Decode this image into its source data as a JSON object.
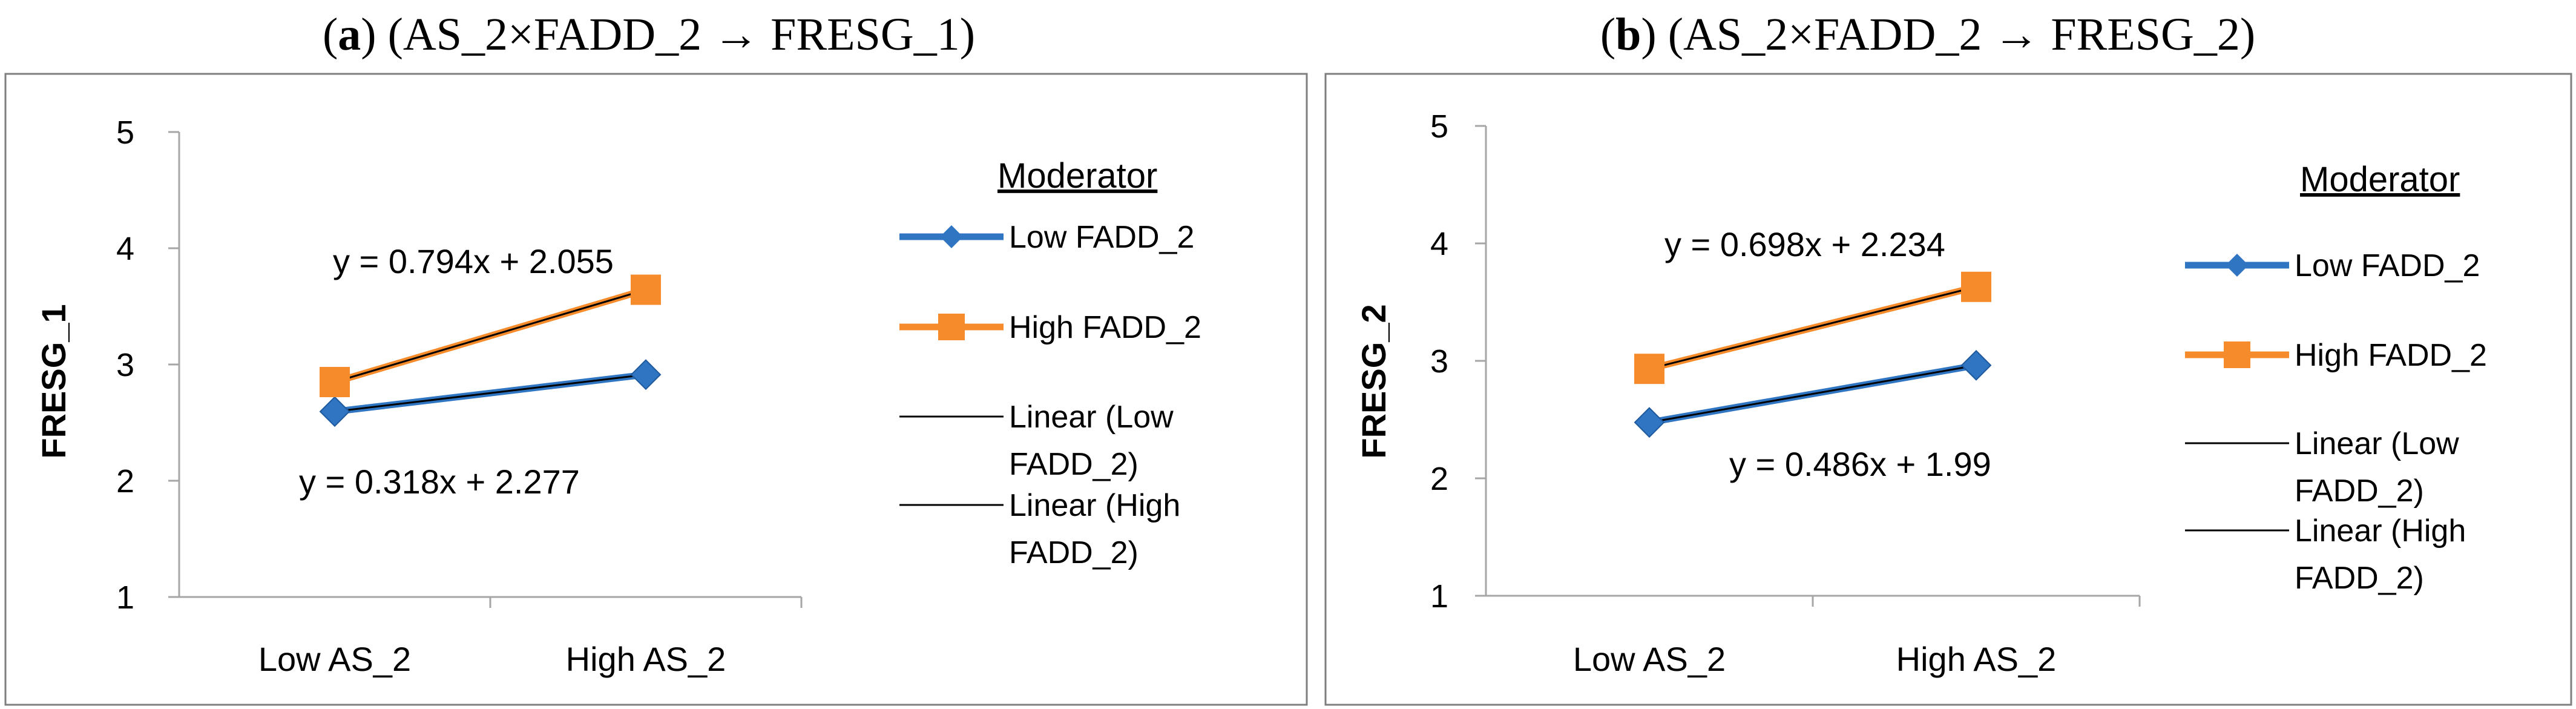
{
  "colors": {
    "low": "#2f75c2",
    "high": "#f58b2b",
    "trend": "#000000",
    "panel_border": "#7f7f7f",
    "axis": "#a6a6a6",
    "text": "#000000"
  },
  "chart_data": [
    {
      "type": "line",
      "title_prefix": "a",
      "title_body": " (AS_2×FADD_2 → FRESG_1)",
      "xlabel": "",
      "ylabel": "FRESG_1",
      "categories": [
        "Low AS_2",
        "High AS_2"
      ],
      "ylim": [
        1,
        5
      ],
      "yticks": [
        "1",
        "2",
        "3",
        "4",
        "5"
      ],
      "grid": false,
      "legend_title": "Moderator",
      "legend_entries": [
        "Low FADD_2",
        "High FADD_2",
        "Linear (Low",
        "FADD_2)",
        "Linear (High",
        "FADD_2)"
      ],
      "legend_position": "right",
      "series": [
        {
          "name": "Low FADD_2",
          "marker": "diamond",
          "values": [
            2.595,
            2.913
          ]
        },
        {
          "name": "High FADD_2",
          "marker": "square",
          "values": [
            2.849,
            3.643
          ]
        }
      ],
      "annotations": [
        "y = 0.794x + 2.055",
        "y = 0.318x + 2.277"
      ]
    },
    {
      "type": "line",
      "title_prefix": "b",
      "title_body": " (AS_2×FADD_2 → FRESG_2)",
      "xlabel": "",
      "ylabel": "FRESG_2",
      "categories": [
        "Low AS_2",
        "High AS_2"
      ],
      "ylim": [
        1,
        5
      ],
      "yticks": [
        "1",
        "2",
        "3",
        "4",
        "5"
      ],
      "grid": false,
      "legend_title": "Moderator",
      "legend_entries": [
        "Low FADD_2",
        "High FADD_2",
        "Linear (Low",
        "FADD_2)",
        "Linear (High",
        "FADD_2)"
      ],
      "legend_position": "right",
      "series": [
        {
          "name": "Low FADD_2",
          "marker": "diamond",
          "values": [
            2.476,
            2.962
          ]
        },
        {
          "name": "High FADD_2",
          "marker": "square",
          "values": [
            2.932,
            3.63
          ]
        }
      ],
      "annotations": [
        "y = 0.698x + 2.234",
        "y = 0.486x + 1.99"
      ]
    }
  ]
}
